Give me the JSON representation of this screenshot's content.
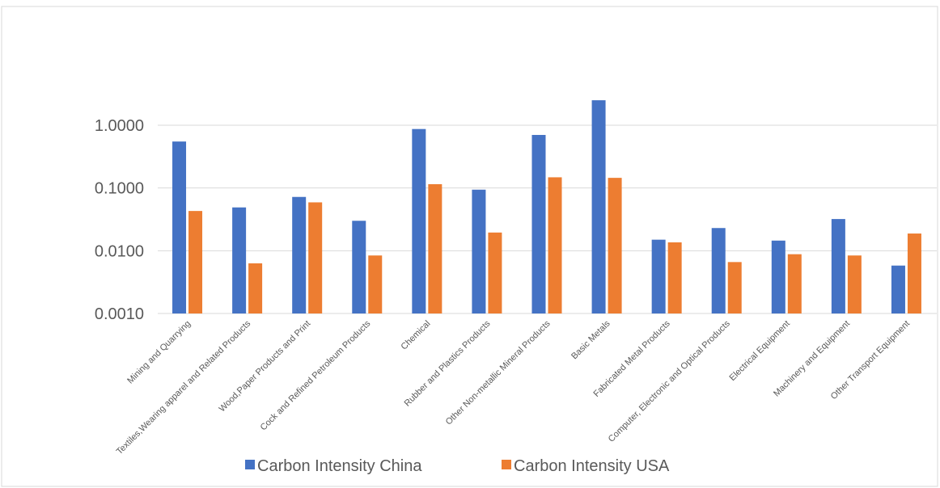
{
  "chart_data": {
    "type": "bar",
    "yscale": "log",
    "ylim": [
      0.001,
      10
    ],
    "yticks": [
      "0.0010",
      "0.0100",
      "0.1000",
      "1.0000"
    ],
    "grid": true,
    "legend_position": "bottom",
    "categories": [
      "Mining and Quarrying",
      "Textiles,Wearing apparel and Related Products",
      "Wood,Paper Products and Print",
      "Cock and Refined Petroleum Products",
      "Chemical",
      "Rubber and Plastics Products",
      "Other Non-metallic Mineral Products",
      "Basic Metals",
      "Fabricated Metal Products",
      "Computer, Electronic and Optical Products",
      "Electrical Equipment",
      "Machinery and Equipment",
      "Other Transport Equipment"
    ],
    "series": [
      {
        "name": "Carbon Intensity China",
        "color": "#4472C4",
        "values": [
          0.55,
          0.049,
          0.072,
          0.03,
          0.87,
          0.094,
          0.7,
          2.5,
          0.015,
          0.023,
          0.0145,
          0.032,
          0.0058
        ]
      },
      {
        "name": "Carbon Intensity USA",
        "color": "#ED7D31",
        "values": [
          0.043,
          0.0063,
          0.059,
          0.0084,
          0.115,
          0.0195,
          0.148,
          0.145,
          0.0136,
          0.0066,
          0.0088,
          0.0084,
          0.0188
        ]
      }
    ]
  }
}
